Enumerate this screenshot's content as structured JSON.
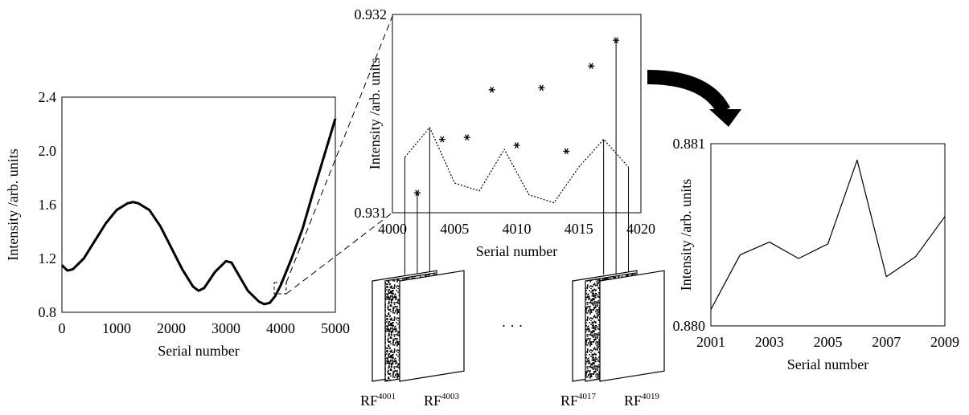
{
  "chart_data": [
    {
      "type": "line",
      "x": [
        0,
        100,
        200,
        400,
        600,
        800,
        1000,
        1200,
        1300,
        1400,
        1600,
        1800,
        2000,
        2200,
        2400,
        2500,
        2600,
        2800,
        3000,
        3100,
        3200,
        3400,
        3600,
        3700,
        3800,
        3900,
        4000,
        4200,
        4400,
        4600,
        4800,
        5000
      ],
      "values": [
        1.15,
        1.11,
        1.12,
        1.2,
        1.33,
        1.46,
        1.56,
        1.61,
        1.62,
        1.61,
        1.56,
        1.44,
        1.28,
        1.12,
        0.99,
        0.96,
        0.98,
        1.1,
        1.18,
        1.17,
        1.1,
        0.96,
        0.88,
        0.86,
        0.87,
        0.92,
        1.0,
        1.2,
        1.42,
        1.7,
        1.97,
        2.24
      ],
      "color": "#000000",
      "line_width": 3,
      "xlim": [
        0,
        5000
      ],
      "xticks": [
        0,
        1000,
        2000,
        3000,
        4000,
        5000
      ],
      "ylim": [
        0.8,
        2.4
      ],
      "yticks": [
        0.8,
        1.2,
        1.6,
        {
          "value": 2,
          "label": "2.0"
        },
        2.4
      ],
      "xlabel": "Serial number",
      "ylabel": "Intensity /arb. units"
    },
    {
      "type": "scatter",
      "series": [
        {
          "x": [
            4002,
            4004,
            4006,
            4008,
            4010,
            4012,
            4014,
            4016,
            4018
          ],
          "values": [
            0.9311,
            0.93137,
            0.93138,
            0.93162,
            0.93134,
            0.93163,
            0.93131,
            0.93174,
            0.93187
          ],
          "color": "#000000",
          "marker": "asterisk"
        },
        {
          "x": [
            4001,
            4003,
            4005,
            4007,
            4009,
            4011,
            4013,
            4015,
            4017,
            4019
          ],
          "values": [
            0.93128,
            0.93143,
            0.93115,
            0.93111,
            0.93132,
            0.93109,
            0.93105,
            0.93123,
            0.93137,
            0.93123
          ],
          "color": "#000000",
          "line_style": "dotted"
        }
      ],
      "xlim": [
        4000,
        4020
      ],
      "xticks": [
        4000,
        4005,
        4010,
        4015,
        4020
      ],
      "ylim": [
        0.931,
        0.932
      ],
      "yticks": [
        0.931,
        0.932
      ],
      "xlabel": "Serial number",
      "ylabel": "Intensity /arb. units"
    },
    {
      "type": "line",
      "x": [
        2001,
        2002,
        2003,
        2004,
        2005,
        2006,
        2007,
        2008,
        2009
      ],
      "values": [
        0.88009,
        0.88039,
        0.88046,
        0.88037,
        0.88045,
        0.88091,
        0.88027,
        0.88038,
        0.8806
      ],
      "color": "#000000",
      "line_width": 1.2,
      "xlim": [
        2001,
        2009
      ],
      "xticks": [
        2001,
        2003,
        2005,
        2007,
        2009
      ],
      "ylim": [
        0.88,
        0.881
      ],
      "yticks": [
        {
          "value": 0.88,
          "label": "0.880"
        },
        0.881
      ],
      "xlabel": "Serial number",
      "ylabel": "Intensity /arb. units"
    }
  ],
  "frames": [
    {
      "base": "RF",
      "sup": "4001"
    },
    {
      "base": "RF",
      "sup": "4003"
    },
    {
      "base": "RF",
      "sup": "4017"
    },
    {
      "base": "RF",
      "sup": "4019"
    }
  ],
  "ellipsis": "· · ·"
}
